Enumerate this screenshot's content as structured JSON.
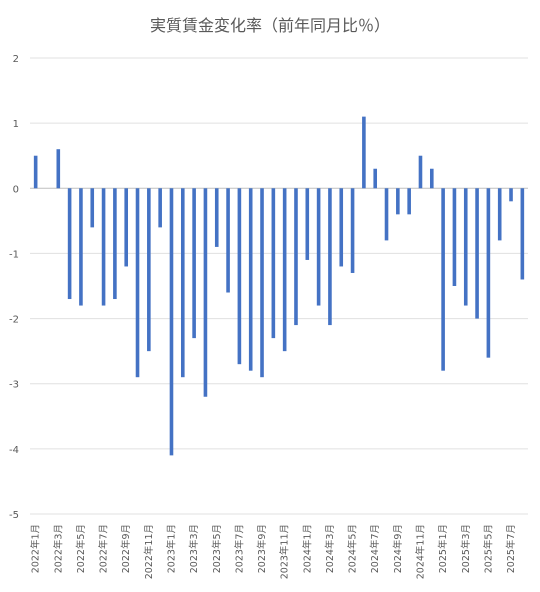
{
  "chart_data": {
    "type": "bar",
    "title": "実質賃金変化率（前年同月比％）",
    "xlabel": "",
    "ylabel": "",
    "ylim": [
      -5,
      2
    ],
    "yticks": [
      2,
      1,
      0,
      -1,
      -2,
      -3,
      -4,
      -5
    ],
    "grid": true,
    "legend": "none",
    "bar_color": "#4472C4",
    "categories": [
      "2022年1月",
      "2022年2月",
      "2022年3月",
      "2022年4月",
      "2022年5月",
      "2022年6月",
      "2022年7月",
      "2022年8月",
      "2022年9月",
      "2022年10月",
      "2022年11月",
      "2022年12月",
      "2023年1月",
      "2023年2月",
      "2023年3月",
      "2023年4月",
      "2023年5月",
      "2023年6月",
      "2023年7月",
      "2023年8月",
      "2023年9月",
      "2023年10月",
      "2023年11月",
      "2023年12月",
      "2024年1月",
      "2024年2月",
      "2024年3月",
      "2024年4月",
      "2024年5月",
      "2024年6月",
      "2024年7月",
      "2024年8月",
      "2024年9月",
      "2024年10月",
      "2024年11月",
      "2024年12月",
      "2025年1月",
      "2025年2月",
      "2025年3月",
      "2025年4月",
      "2025年5月",
      "2025年6月",
      "2025年7月",
      "2025年8月"
    ],
    "tick_labels": [
      "2022年1月",
      "2022年3月",
      "2022年5月",
      "2022年7月",
      "2022年9月",
      "2022年11月",
      "2023年1月",
      "2023年3月",
      "2023年5月",
      "2023年7月",
      "2023年9月",
      "2023年11月",
      "2024年1月",
      "2024年3月",
      "2024年5月",
      "2024年7月",
      "2024年9月",
      "2024年11月",
      "2025年1月",
      "2025年3月",
      "2025年5月",
      "2025年7月"
    ],
    "values": [
      0.5,
      0.0,
      0.6,
      -1.7,
      -1.8,
      -0.6,
      -1.8,
      -1.7,
      -1.2,
      -2.9,
      -2.5,
      -0.6,
      -4.1,
      -2.9,
      -2.3,
      -3.2,
      -0.9,
      -1.6,
      -2.7,
      -2.8,
      -2.9,
      -2.3,
      -2.5,
      -2.1,
      -1.1,
      -1.8,
      -2.1,
      -1.2,
      -1.3,
      1.1,
      0.3,
      -0.8,
      -0.4,
      -0.4,
      0.5,
      0.3,
      -2.8,
      -1.5,
      -1.8,
      -2.0,
      -2.6,
      -0.8,
      -0.2,
      -1.4
    ]
  }
}
